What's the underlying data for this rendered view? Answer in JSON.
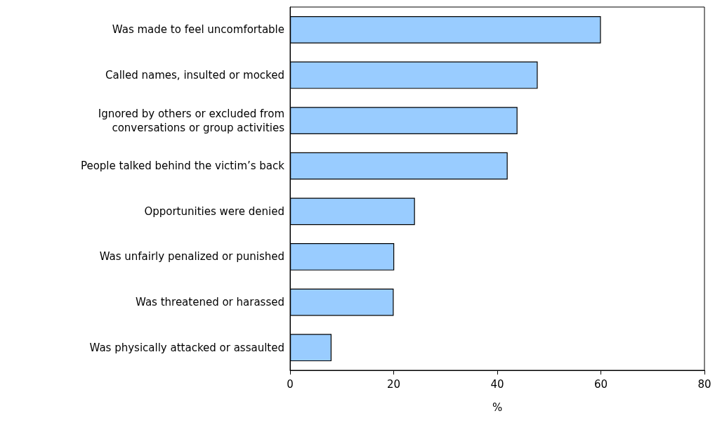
{
  "chart_data": {
    "type": "bar",
    "orientation": "horizontal",
    "categories": [
      "Was made to feel uncomfortable",
      "Called names, insulted or mocked",
      "Ignored by others or excluded from\nconversations or group activities",
      "People talked behind the victim’s back",
      "Opportunities were denied",
      "Was unfairly penalized or punished",
      "Was threatened or harassed",
      "Was physically attacked or assaulted"
    ],
    "values": [
      60,
      47.8,
      43.9,
      42,
      24.1,
      20.1,
      20,
      8
    ],
    "color": "#99ccff",
    "xlabel": "%",
    "xlim": [
      0,
      80
    ],
    "xticks": [
      0,
      20,
      40,
      60,
      80
    ],
    "grid": false
  }
}
